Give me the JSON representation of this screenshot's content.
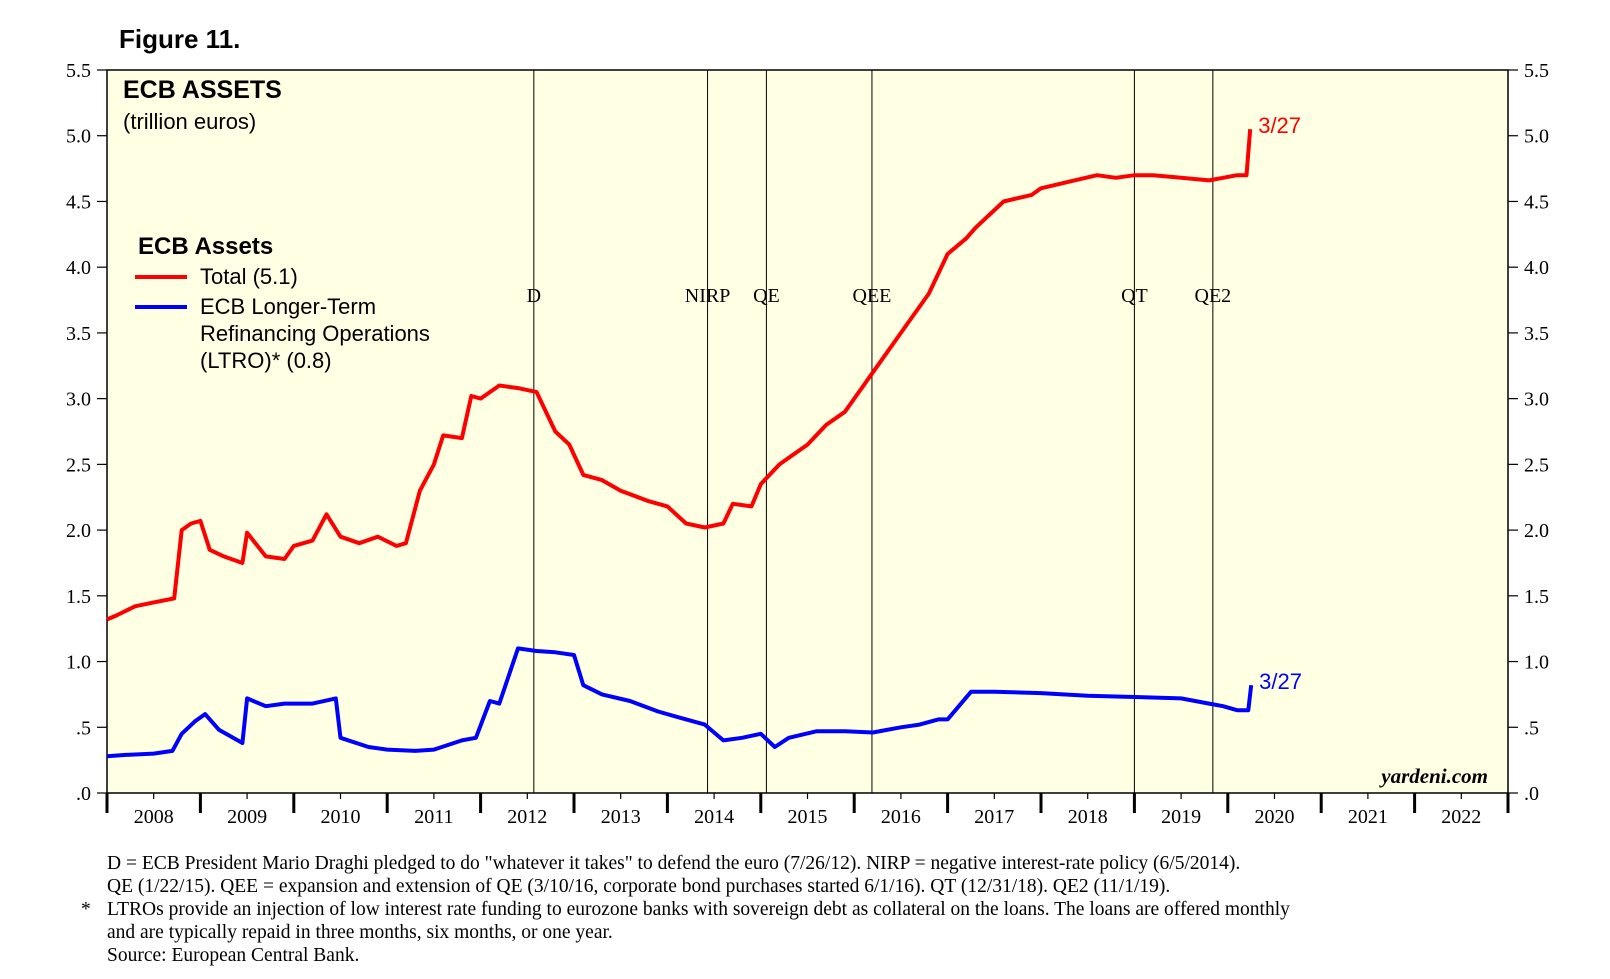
{
  "figure_label": "Figure 11.",
  "chart_data": {
    "type": "line",
    "title": "ECB ASSETS",
    "subtitle": "(trillion euros)",
    "legend_title": "ECB Assets",
    "xlabel": "",
    "ylabel": "",
    "xlim": [
      2008,
      2023
    ],
    "ylim": [
      0,
      5.5
    ],
    "x_ticks": [
      "2008",
      "2009",
      "2010",
      "2011",
      "2012",
      "2013",
      "2014",
      "2015",
      "2016",
      "2017",
      "2018",
      "2019",
      "2020",
      "2021",
      "2022"
    ],
    "y_ticks": [
      {
        "value": 5.5,
        "label": "5.5"
      },
      {
        "value": 5.0,
        "label": "5.0"
      },
      {
        "value": 4.5,
        "label": "4.5"
      },
      {
        "value": 4.0,
        "label": "4.0"
      },
      {
        "value": 3.5,
        "label": "3.5"
      },
      {
        "value": 3.0,
        "label": "3.0"
      },
      {
        "value": 2.5,
        "label": "2.5"
      },
      {
        "value": 2.0,
        "label": "2.0"
      },
      {
        "value": 1.5,
        "label": "1.5"
      },
      {
        "value": 1.0,
        "label": "1.0"
      },
      {
        "value": 0.5,
        "label": ".5"
      },
      {
        "value": 0.0,
        "label": ".0"
      }
    ],
    "events": [
      {
        "label": "D",
        "x": 2012.57
      },
      {
        "label": "NIRP",
        "x": 2014.43
      },
      {
        "label": "QE",
        "x": 2015.06
      },
      {
        "label": "QEE",
        "x": 2016.19
      },
      {
        "label": "QT",
        "x": 2019.0
      },
      {
        "label": "QE2",
        "x": 2019.84
      }
    ],
    "watermark": "yardeni.com",
    "series": [
      {
        "name": "Total",
        "legend_label": "Total (5.1)",
        "color": "#ff0000",
        "end_label": "3/27",
        "x": [
          2008.0,
          2008.1,
          2008.3,
          2008.5,
          2008.72,
          2008.8,
          2008.9,
          2009.0,
          2009.1,
          2009.25,
          2009.45,
          2009.5,
          2009.7,
          2009.9,
          2010.0,
          2010.2,
          2010.35,
          2010.5,
          2010.7,
          2010.9,
          2011.1,
          2011.2,
          2011.35,
          2011.5,
          2011.6,
          2011.8,
          2011.9,
          2012.0,
          2012.2,
          2012.4,
          2012.6,
          2012.8,
          2012.95,
          2013.1,
          2013.3,
          2013.5,
          2013.8,
          2014.0,
          2014.2,
          2014.4,
          2014.6,
          2014.7,
          2014.9,
          2015.0,
          2015.2,
          2015.3,
          2015.5,
          2015.7,
          2015.9,
          2016.2,
          2016.5,
          2016.8,
          2017.0,
          2017.2,
          2017.3,
          2017.6,
          2017.9,
          2018.0,
          2018.3,
          2018.6,
          2018.8,
          2019.0,
          2019.2,
          2019.5,
          2019.8,
          2019.95,
          2020.1,
          2020.2,
          2020.24
        ],
        "values": [
          1.32,
          1.35,
          1.42,
          1.45,
          1.48,
          2.0,
          2.05,
          2.07,
          1.85,
          1.8,
          1.75,
          1.98,
          1.8,
          1.78,
          1.88,
          1.92,
          2.12,
          1.95,
          1.9,
          1.95,
          1.88,
          1.9,
          2.3,
          2.5,
          2.72,
          2.7,
          3.02,
          3.0,
          3.1,
          3.08,
          3.05,
          2.75,
          2.65,
          2.42,
          2.38,
          2.3,
          2.22,
          2.18,
          2.05,
          2.02,
          2.05,
          2.2,
          2.18,
          2.35,
          2.5,
          2.55,
          2.65,
          2.8,
          2.9,
          3.2,
          3.5,
          3.8,
          4.1,
          4.22,
          4.3,
          4.5,
          4.55,
          4.6,
          4.65,
          4.7,
          4.68,
          4.7,
          4.7,
          4.68,
          4.66,
          4.68,
          4.7,
          4.7,
          5.05
        ]
      },
      {
        "name": "ECB Longer-Term Refinancing Operations (LTRO)",
        "legend_label": "ECB Longer-Term Refinancing Operations (LTRO)* (0.8)",
        "color": "#0000ff",
        "end_label": "3/27",
        "x": [
          2008.0,
          2008.2,
          2008.5,
          2008.7,
          2008.8,
          2008.95,
          2009.05,
          2009.2,
          2009.45,
          2009.5,
          2009.7,
          2009.9,
          2010.2,
          2010.45,
          2010.5,
          2010.8,
          2011.0,
          2011.3,
          2011.5,
          2011.8,
          2011.95,
          2012.1,
          2012.2,
          2012.4,
          2012.6,
          2012.8,
          2013.0,
          2013.1,
          2013.3,
          2013.6,
          2013.9,
          2014.1,
          2014.4,
          2014.6,
          2014.8,
          2015.0,
          2015.15,
          2015.3,
          2015.6,
          2015.9,
          2016.2,
          2016.5,
          2016.7,
          2016.9,
          2017.0,
          2017.25,
          2017.5,
          2018.0,
          2018.5,
          2019.0,
          2019.5,
          2019.8,
          2019.95,
          2020.1,
          2020.22,
          2020.25
        ],
        "values": [
          0.28,
          0.29,
          0.3,
          0.32,
          0.45,
          0.55,
          0.6,
          0.48,
          0.38,
          0.72,
          0.66,
          0.68,
          0.68,
          0.72,
          0.42,
          0.35,
          0.33,
          0.32,
          0.33,
          0.4,
          0.42,
          0.7,
          0.68,
          1.1,
          1.08,
          1.07,
          1.05,
          0.82,
          0.75,
          0.7,
          0.62,
          0.58,
          0.52,
          0.4,
          0.42,
          0.45,
          0.35,
          0.42,
          0.47,
          0.47,
          0.46,
          0.5,
          0.52,
          0.56,
          0.56,
          0.77,
          0.77,
          0.76,
          0.74,
          0.73,
          0.72,
          0.68,
          0.66,
          0.63,
          0.63,
          0.82
        ]
      }
    ]
  },
  "notes": {
    "line1": "D = ECB President Mario Draghi pledged to do \"whatever it takes\" to defend the euro (7/26/12). NIRP = negative interest-rate policy (6/5/2014).",
    "line2": "QE (1/22/15). QEE = expansion and extension of QE (3/10/16, corporate bond purchases started 6/1/16). QT (12/31/18). QE2 (11/1/19).",
    "star": "*",
    "line3": "LTROs provide an injection of low interest rate funding to eurozone banks with sovereign debt as collateral on the loans. The loans are offered monthly",
    "line4": "and are typically repaid in three months, six months, or one year.",
    "source": "Source: European Central Bank."
  }
}
